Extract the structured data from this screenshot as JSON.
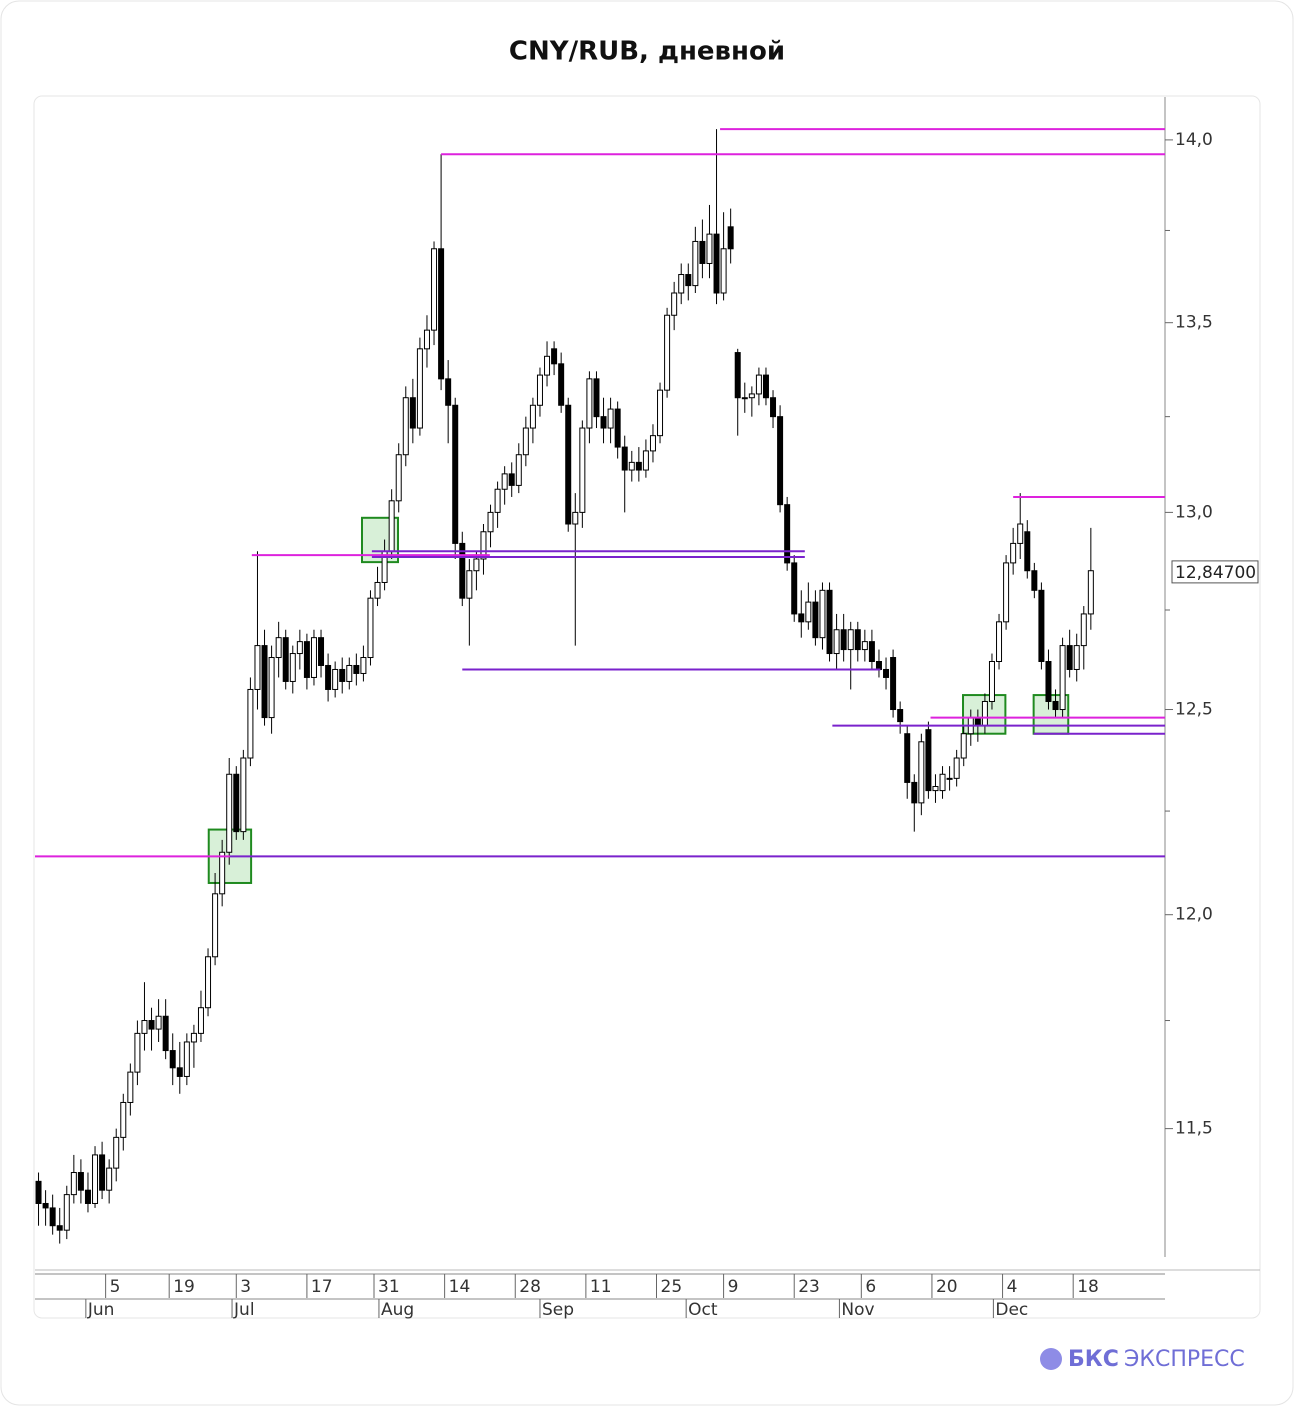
{
  "chart_data": {
    "type": "candlestick",
    "title": "CNY/RUB, дневной",
    "log_scale": true,
    "ylim": [
      11.21,
      14.12
    ],
    "xlim": [
      0,
      160
    ],
    "yticks": [
      {
        "value": 11.5,
        "label": "11,5"
      },
      {
        "value": 12.0,
        "label": "12,0"
      },
      {
        "value": 12.5,
        "label": "12,5"
      },
      {
        "value": 13.0,
        "label": "13,0"
      },
      {
        "value": 13.5,
        "label": "13,5"
      },
      {
        "value": 14.0,
        "label": "14,0"
      }
    ],
    "yminorticks": [
      11.75,
      12.25,
      12.75,
      13.25,
      13.75
    ],
    "xticks": [
      {
        "value": 10,
        "label": "5"
      },
      {
        "value": 19,
        "label": "19"
      },
      {
        "value": 28.5,
        "label": "3"
      },
      {
        "value": 38.5,
        "label": "17"
      },
      {
        "value": 48,
        "label": "31"
      },
      {
        "value": 58,
        "label": "14"
      },
      {
        "value": 68,
        "label": "28"
      },
      {
        "value": 78,
        "label": "11"
      },
      {
        "value": 88,
        "label": "25"
      },
      {
        "value": 97.5,
        "label": "9"
      },
      {
        "value": 107.5,
        "label": "23"
      },
      {
        "value": 117,
        "label": "6"
      },
      {
        "value": 127,
        "label": "20"
      },
      {
        "value": 137,
        "label": "4"
      },
      {
        "value": 147,
        "label": "18"
      }
    ],
    "month_ticks": [
      {
        "value": 7.2,
        "label": "Jun"
      },
      {
        "value": 27.9,
        "label": "Jul"
      },
      {
        "value": 48.7,
        "label": "Aug"
      },
      {
        "value": 71.5,
        "label": "Sep"
      },
      {
        "value": 92.2,
        "label": "Oct"
      },
      {
        "value": 113.9,
        "label": "Nov"
      },
      {
        "value": 135.7,
        "label": "Dec"
      }
    ],
    "up_color": "#ffffff",
    "down_color": "#000000",
    "last_price": {
      "value": 12.847,
      "label": "12,84700"
    },
    "candles": [
      [
        11.38,
        11.4,
        11.28,
        11.33
      ],
      [
        11.33,
        11.36,
        11.28,
        11.32
      ],
      [
        11.32,
        11.35,
        11.26,
        11.28
      ],
      [
        11.28,
        11.32,
        11.24,
        11.27
      ],
      [
        11.27,
        11.37,
        11.25,
        11.35
      ],
      [
        11.35,
        11.44,
        11.33,
        11.4
      ],
      [
        11.4,
        11.43,
        11.33,
        11.36
      ],
      [
        11.36,
        11.4,
        11.31,
        11.33
      ],
      [
        11.33,
        11.46,
        11.32,
        11.44
      ],
      [
        11.44,
        11.47,
        11.34,
        11.36
      ],
      [
        11.36,
        11.43,
        11.33,
        11.41
      ],
      [
        11.41,
        11.5,
        11.38,
        11.48
      ],
      [
        11.48,
        11.58,
        11.45,
        11.56
      ],
      [
        11.56,
        11.65,
        11.53,
        11.63
      ],
      [
        11.63,
        11.75,
        11.6,
        11.72
      ],
      [
        11.72,
        11.84,
        11.68,
        11.75
      ],
      [
        11.75,
        11.78,
        11.68,
        11.73
      ],
      [
        11.73,
        11.8,
        11.7,
        11.76
      ],
      [
        11.76,
        11.8,
        11.66,
        11.68
      ],
      [
        11.68,
        11.72,
        11.6,
        11.64
      ],
      [
        11.64,
        11.7,
        11.58,
        11.62
      ],
      [
        11.62,
        11.72,
        11.6,
        11.7
      ],
      [
        11.7,
        11.74,
        11.64,
        11.72
      ],
      [
        11.72,
        11.82,
        11.7,
        11.78
      ],
      [
        11.78,
        11.92,
        11.76,
        11.9
      ],
      [
        11.9,
        12.1,
        11.88,
        12.05
      ],
      [
        12.05,
        12.18,
        12.02,
        12.15
      ],
      [
        12.15,
        12.38,
        12.12,
        12.34
      ],
      [
        12.34,
        12.36,
        12.18,
        12.2
      ],
      [
        12.2,
        12.4,
        12.18,
        12.38
      ],
      [
        12.38,
        12.58,
        12.36,
        12.55
      ],
      [
        12.55,
        12.9,
        12.5,
        12.66
      ],
      [
        12.66,
        12.7,
        12.46,
        12.48
      ],
      [
        12.48,
        12.66,
        12.44,
        12.63
      ],
      [
        12.63,
        12.72,
        12.58,
        12.68
      ],
      [
        12.68,
        12.7,
        12.55,
        12.57
      ],
      [
        12.57,
        12.66,
        12.54,
        12.64
      ],
      [
        12.64,
        12.7,
        12.6,
        12.67
      ],
      [
        12.67,
        12.69,
        12.55,
        12.58
      ],
      [
        12.58,
        12.7,
        12.56,
        12.68
      ],
      [
        12.68,
        12.7,
        12.58,
        12.61
      ],
      [
        12.61,
        12.64,
        12.52,
        12.55
      ],
      [
        12.55,
        12.62,
        12.53,
        12.6
      ],
      [
        12.6,
        12.63,
        12.54,
        12.57
      ],
      [
        12.57,
        12.63,
        12.55,
        12.61
      ],
      [
        12.61,
        12.64,
        12.56,
        12.59
      ],
      [
        12.59,
        12.66,
        12.57,
        12.63
      ],
      [
        12.63,
        12.8,
        12.61,
        12.78
      ],
      [
        12.78,
        12.86,
        12.76,
        12.82
      ],
      [
        12.82,
        12.93,
        12.8,
        12.9
      ],
      [
        12.9,
        13.06,
        12.88,
        13.03
      ],
      [
        13.03,
        13.18,
        13.0,
        13.15
      ],
      [
        13.15,
        13.33,
        13.12,
        13.3
      ],
      [
        13.3,
        13.35,
        13.18,
        13.22
      ],
      [
        13.22,
        13.46,
        13.2,
        13.43
      ],
      [
        13.43,
        13.52,
        13.38,
        13.48
      ],
      [
        13.48,
        13.72,
        13.44,
        13.7
      ],
      [
        13.7,
        13.96,
        13.32,
        13.35
      ],
      [
        13.35,
        13.4,
        13.18,
        13.28
      ],
      [
        13.28,
        13.3,
        12.88,
        12.92
      ],
      [
        12.92,
        12.95,
        12.76,
        12.78
      ],
      [
        12.78,
        12.88,
        12.66,
        12.85
      ],
      [
        12.85,
        12.9,
        12.8,
        12.88
      ],
      [
        12.88,
        12.97,
        12.84,
        12.95
      ],
      [
        12.95,
        13.02,
        12.91,
        13.0
      ],
      [
        13.0,
        13.08,
        12.96,
        13.06
      ],
      [
        13.06,
        13.12,
        13.02,
        13.1
      ],
      [
        13.1,
        13.13,
        13.04,
        13.07
      ],
      [
        13.07,
        13.18,
        13.05,
        13.15
      ],
      [
        13.15,
        13.25,
        13.12,
        13.22
      ],
      [
        13.22,
        13.3,
        13.18,
        13.28
      ],
      [
        13.28,
        13.38,
        13.25,
        13.36
      ],
      [
        13.36,
        13.45,
        13.33,
        13.41
      ],
      [
        13.43,
        13.45,
        13.36,
        13.39
      ],
      [
        13.39,
        13.42,
        13.26,
        13.28
      ],
      [
        13.28,
        13.3,
        12.95,
        12.97
      ],
      [
        12.97,
        13.05,
        12.66,
        13.0
      ],
      [
        13.0,
        13.24,
        12.96,
        13.22
      ],
      [
        13.22,
        13.37,
        13.18,
        13.35
      ],
      [
        13.35,
        13.37,
        13.22,
        13.25
      ],
      [
        13.25,
        13.3,
        13.18,
        13.22
      ],
      [
        13.22,
        13.3,
        13.18,
        13.27
      ],
      [
        13.27,
        13.29,
        13.14,
        13.17
      ],
      [
        13.17,
        13.2,
        13.0,
        13.11
      ],
      [
        13.11,
        13.16,
        13.08,
        13.13
      ],
      [
        13.13,
        13.17,
        13.08,
        13.11
      ],
      [
        13.11,
        13.19,
        13.09,
        13.16
      ],
      [
        13.16,
        13.23,
        13.13,
        13.2
      ],
      [
        13.2,
        13.34,
        13.18,
        13.32
      ],
      [
        13.32,
        13.54,
        13.3,
        13.52
      ],
      [
        13.52,
        13.61,
        13.48,
        13.58
      ],
      [
        13.58,
        13.66,
        13.55,
        13.63
      ],
      [
        13.63,
        13.66,
        13.56,
        13.6
      ],
      [
        13.6,
        13.76,
        13.58,
        13.72
      ],
      [
        13.72,
        13.78,
        13.62,
        13.66
      ],
      [
        13.66,
        13.82,
        13.62,
        13.74
      ],
      [
        13.74,
        14.03,
        13.55,
        13.58
      ],
      [
        13.58,
        13.8,
        13.56,
        13.7
      ],
      [
        13.76,
        13.81,
        13.66,
        13.7
      ],
      [
        13.42,
        13.43,
        13.2,
        13.3
      ],
      [
        13.3,
        13.34,
        13.26,
        13.3
      ],
      [
        13.3,
        13.33,
        13.25,
        13.31
      ],
      [
        13.31,
        13.38,
        13.28,
        13.36
      ],
      [
        13.36,
        13.38,
        13.28,
        13.3
      ],
      [
        13.3,
        13.32,
        13.22,
        13.25
      ],
      [
        13.25,
        13.28,
        13.0,
        13.02
      ],
      [
        13.02,
        13.04,
        12.85,
        12.87
      ],
      [
        12.87,
        12.89,
        12.72,
        12.74
      ],
      [
        12.74,
        12.8,
        12.68,
        12.72
      ],
      [
        12.72,
        12.82,
        12.7,
        12.77
      ],
      [
        12.77,
        12.8,
        12.66,
        12.68
      ],
      [
        12.68,
        12.82,
        12.65,
        12.8
      ],
      [
        12.8,
        12.82,
        12.62,
        12.64
      ],
      [
        12.64,
        12.74,
        12.6,
        12.7
      ],
      [
        12.7,
        12.74,
        12.62,
        12.65
      ],
      [
        12.65,
        12.72,
        12.55,
        12.7
      ],
      [
        12.7,
        12.72,
        12.62,
        12.65
      ],
      [
        12.65,
        12.7,
        12.62,
        12.67
      ],
      [
        12.67,
        12.7,
        12.6,
        12.62
      ],
      [
        12.62,
        12.65,
        12.58,
        12.6
      ],
      [
        12.6,
        12.63,
        12.55,
        12.58
      ],
      [
        12.63,
        12.65,
        12.48,
        12.5
      ],
      [
        12.5,
        12.52,
        12.44,
        12.47
      ],
      [
        12.44,
        12.46,
        12.28,
        12.32
      ],
      [
        12.32,
        12.34,
        12.2,
        12.27
      ],
      [
        12.27,
        12.44,
        12.24,
        12.42
      ],
      [
        12.45,
        12.47,
        12.28,
        12.3
      ],
      [
        12.3,
        12.34,
        12.27,
        12.31
      ],
      [
        12.3,
        12.36,
        12.28,
        12.34
      ],
      [
        12.33,
        12.36,
        12.3,
        12.33
      ],
      [
        12.33,
        12.4,
        12.31,
        12.38
      ],
      [
        12.38,
        12.46,
        12.36,
        12.44
      ],
      [
        12.44,
        12.5,
        12.41,
        12.48
      ],
      [
        12.48,
        12.5,
        12.42,
        12.46
      ],
      [
        12.46,
        12.54,
        12.44,
        12.52
      ],
      [
        12.52,
        12.64,
        12.5,
        12.62
      ],
      [
        12.62,
        12.74,
        12.6,
        12.72
      ],
      [
        12.72,
        12.89,
        12.7,
        12.87
      ],
      [
        12.87,
        12.96,
        12.84,
        12.92
      ],
      [
        12.92,
        13.05,
        12.88,
        12.97
      ],
      [
        12.95,
        12.98,
        12.83,
        12.85
      ],
      [
        12.85,
        12.87,
        12.78,
        12.8
      ],
      [
        12.8,
        12.82,
        12.6,
        12.62
      ],
      [
        12.62,
        12.65,
        12.5,
        12.52
      ],
      [
        12.52,
        12.55,
        12.48,
        12.5
      ],
      [
        12.5,
        12.68,
        12.48,
        12.66
      ],
      [
        12.66,
        12.7,
        12.58,
        12.6
      ],
      [
        12.6,
        12.69,
        12.57,
        12.66
      ],
      [
        12.66,
        12.76,
        12.6,
        12.74
      ],
      [
        12.74,
        12.96,
        12.7,
        12.85
      ]
    ],
    "levels": [
      {
        "value": 14.03,
        "color": "#dd22dd",
        "from": 97,
        "to": 160
      },
      {
        "value": 13.96,
        "color": "#dd22dd",
        "from": 57.5,
        "to": 160
      },
      {
        "value": 12.89,
        "color": "#dd22dd",
        "from": 30.7,
        "to": 64.4
      },
      {
        "value": 12.9,
        "color": "#7a22cc",
        "from": 47.7,
        "to": 109
      },
      {
        "value": 12.885,
        "color": "#7a22cc",
        "from": 47.7,
        "to": 109
      },
      {
        "value": 12.6,
        "color": "#7a22cc",
        "from": 60.5,
        "to": 119.7
      },
      {
        "value": 12.46,
        "color": "#7a22cc",
        "from": 112.9,
        "to": 160
      },
      {
        "value": 12.48,
        "color": "#dd22dd",
        "from": 126.8,
        "to": 160
      },
      {
        "value": 12.44,
        "color": "#7a22cc",
        "from": 141.4,
        "to": 160
      },
      {
        "value": 13.04,
        "color": "#dd22dd",
        "from": 138.5,
        "to": 160
      },
      {
        "value": 12.14,
        "color": "#dd22dd",
        "from": 0,
        "to": 27.6
      },
      {
        "value": 12.14,
        "color": "#7a22cc",
        "from": 27.6,
        "to": 160
      }
    ],
    "boxes": [
      {
        "low": 12.076,
        "high": 12.205,
        "from": 24.6,
        "to": 30.6
      },
      {
        "low": 12.872,
        "high": 12.986,
        "from": 46.3,
        "to": 51.4
      },
      {
        "low": 12.44,
        "high": 12.536,
        "from": 131.4,
        "to": 137.4
      },
      {
        "low": 12.44,
        "high": 12.536,
        "from": 141.4,
        "to": 146.3
      }
    ]
  },
  "brand": {
    "bold": "БКС",
    "light": "ЭКСПРЕСС"
  }
}
